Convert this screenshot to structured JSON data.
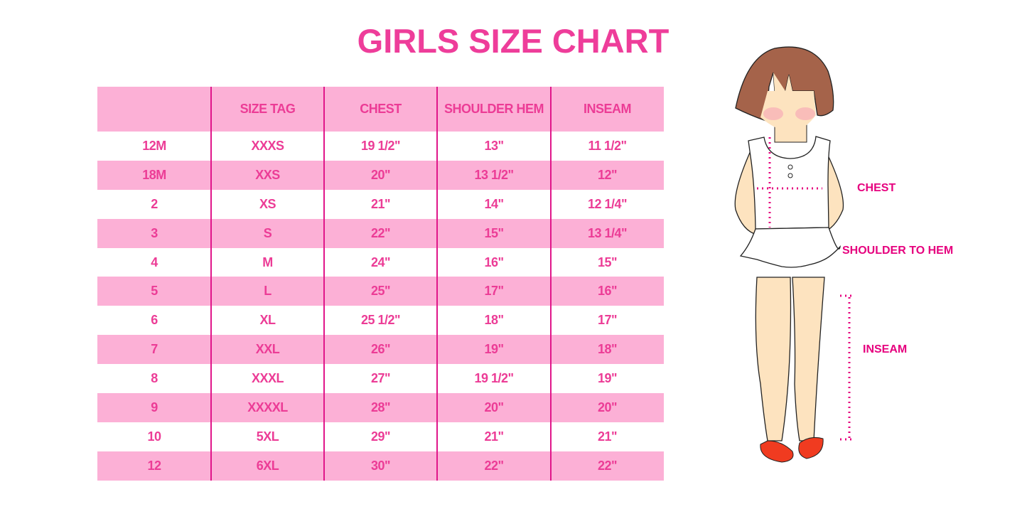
{
  "title": "GIRLS SIZE CHART",
  "colors": {
    "accent": "#ec3c96",
    "stripe": "#fcb0d6",
    "divider": "#e0168a"
  },
  "table": {
    "headers": [
      "",
      "SIZE TAG",
      "CHEST",
      "SHOULDER HEM",
      "INSEAM"
    ],
    "rows": [
      [
        "12M",
        "XXXS",
        "19 1/2\"",
        "13\"",
        "11 1/2\""
      ],
      [
        "18M",
        "XXS",
        "20\"",
        "13 1/2\"",
        "12\""
      ],
      [
        "2",
        "XS",
        "21\"",
        "14\"",
        "12 1/4\""
      ],
      [
        "3",
        "S",
        "22\"",
        "15\"",
        "13 1/4\""
      ],
      [
        "4",
        "M",
        "24\"",
        "16\"",
        "15\""
      ],
      [
        "5",
        "L",
        "25\"",
        "17\"",
        "16\""
      ],
      [
        "6",
        "XL",
        "25 1/2\"",
        "18\"",
        "17\""
      ],
      [
        "7",
        "XXL",
        "26\"",
        "19\"",
        "18\""
      ],
      [
        "8",
        "XXXL",
        "27\"",
        "19 1/2\"",
        "19\""
      ],
      [
        "9",
        "XXXXL",
        "28\"",
        "20\"",
        "20\""
      ],
      [
        "10",
        "5XL",
        "29\"",
        "21\"",
        "21\""
      ],
      [
        "12",
        "6XL",
        "30\"",
        "22\"",
        "22\""
      ]
    ]
  },
  "figure": {
    "labels": {
      "chest": "CHEST",
      "shoulder_to_hem": "SHOULDER TO HEM",
      "inseam": "INSEAM"
    }
  }
}
